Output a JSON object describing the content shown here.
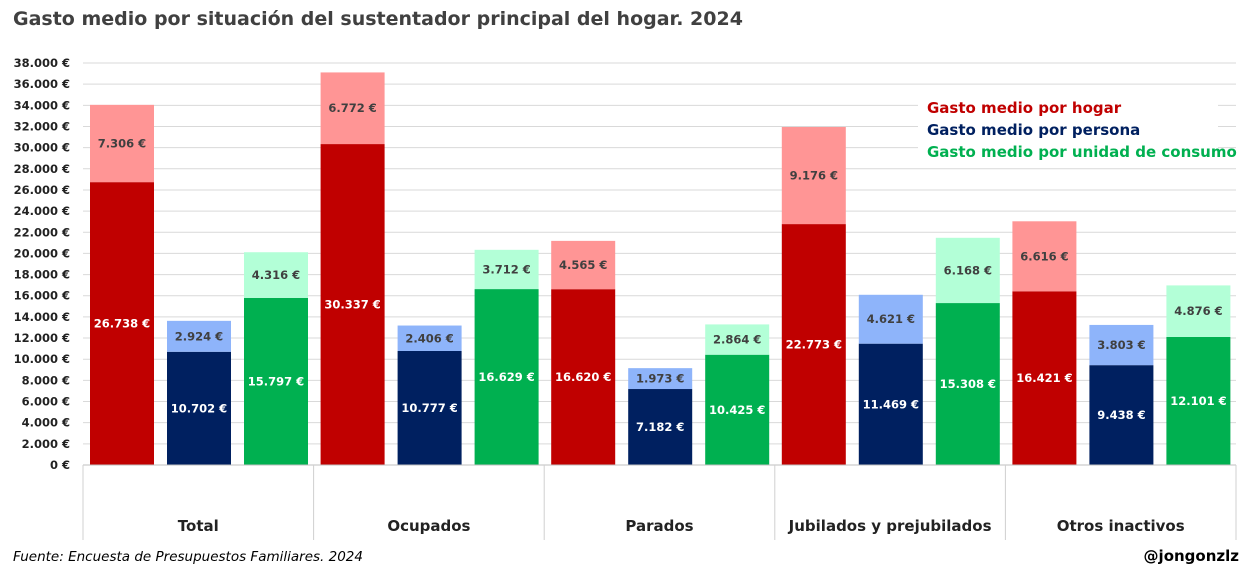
{
  "title": "Gasto medio por situación del sustentador principal del hogar. 2024",
  "source": "Fuente: Encuesta de Presupuestos Familiares. 2024",
  "credit": "@jongonzlz",
  "colors": {
    "hogar_base": "#c00000",
    "hogar_top": "#ff9595",
    "persona_base": "#002060",
    "persona_top": "#8eb4fa",
    "consumo_base": "#00b050",
    "consumo_top": "#b3ffd7",
    "legend_hogar": "#c00000",
    "legend_persona": "#002060",
    "legend_consumo": "#00b050",
    "label_top": "#404040",
    "label_base": "#ffffff",
    "grid": "#d9d9d9"
  },
  "chart_data": {
    "type": "bar",
    "stacked": true,
    "title": "Gasto medio por situación del sustentador principal del hogar. 2024",
    "ylim": [
      0,
      38000
    ],
    "y_ticks": [
      "0 €",
      "2.000 €",
      "4.000 €",
      "6.000 €",
      "8.000 €",
      "10.000 €",
      "12.000 €",
      "14.000 €",
      "16.000 €",
      "18.000 €",
      "20.000 €",
      "22.000 €",
      "24.000 €",
      "26.000 €",
      "28.000 €",
      "30.000 €",
      "32.000 €",
      "34.000 €",
      "36.000 €",
      "38.000 €"
    ],
    "grid": true,
    "legend_position": "top-right",
    "categories": [
      "Total",
      "Ocupados",
      "Parados",
      "Jubilados y prejubilados",
      "Otros inactivos"
    ],
    "series": [
      {
        "name": "Gasto medio por hogar",
        "key": "hogar",
        "base": [
          26738,
          30337,
          16620,
          22773,
          16421
        ],
        "top": [
          7306,
          6772,
          4565,
          9176,
          6616
        ],
        "base_labels": [
          "26.738 €",
          "30.337 €",
          "16.620 €",
          "22.773 €",
          "16.421 €"
        ],
        "top_labels": [
          "7.306 €",
          "6.772 €",
          "4.565 €",
          "9.176 €",
          "6.616 €"
        ]
      },
      {
        "name": "Gasto medio por persona",
        "key": "persona",
        "base": [
          10702,
          10777,
          7182,
          11469,
          9438
        ],
        "top": [
          2924,
          2406,
          1973,
          4621,
          3803
        ],
        "base_labels": [
          "10.702 €",
          "10.777 €",
          "7.182 €",
          "11.469 €",
          "9.438 €"
        ],
        "top_labels": [
          "2.924 €",
          "2.406 €",
          "1.973 €",
          "4.621 €",
          "3.803 €"
        ]
      },
      {
        "name": "Gasto medio por unidad de consumo",
        "key": "consumo",
        "base": [
          15797,
          16629,
          10425,
          15308,
          12101
        ],
        "top": [
          4316,
          3712,
          2864,
          6168,
          4876
        ],
        "base_labels": [
          "15.797 €",
          "16.629 €",
          "10.425 €",
          "15.308 €",
          "12.101 €"
        ],
        "top_labels": [
          "4.316 €",
          "3.712 €",
          "2.864 €",
          "6.168 €",
          "4.876 €"
        ]
      }
    ]
  }
}
